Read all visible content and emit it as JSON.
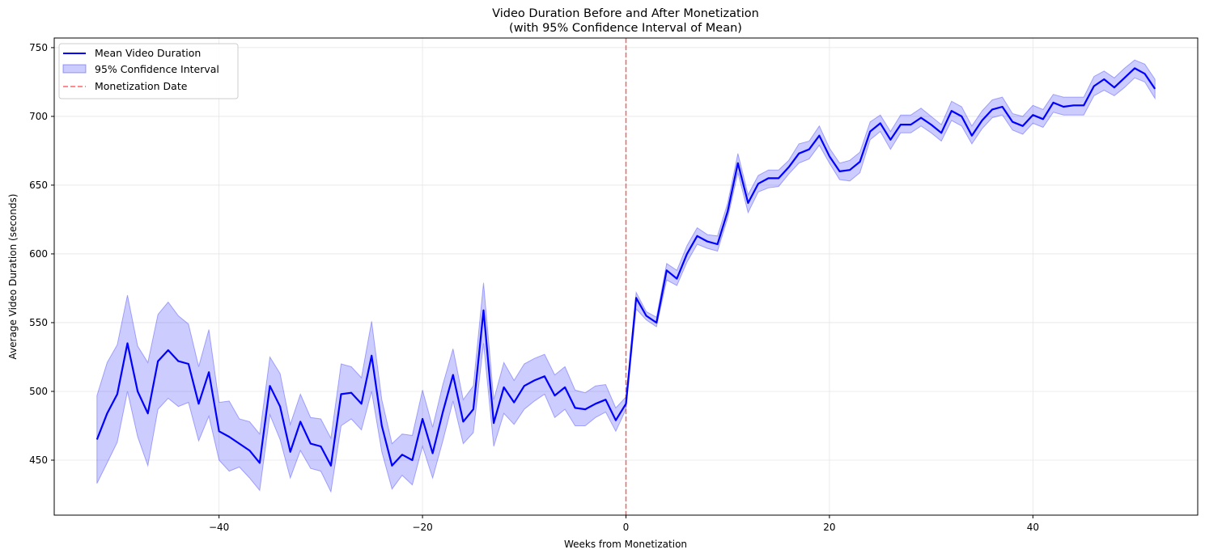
{
  "chart_data": {
    "type": "line",
    "title": "Video Duration Before and After Monetization",
    "subtitle": "(with 95% Confidence Interval of Mean)",
    "xlabel": "Weeks from Monetization",
    "ylabel": "Average Video Duration (seconds)",
    "xlim": [
      -56.2,
      56.2
    ],
    "ylim": [
      410,
      757
    ],
    "xticks": [
      -40,
      -20,
      0,
      20,
      40
    ],
    "xtick_labels": [
      "−40",
      "−20",
      "0",
      "20",
      "40"
    ],
    "yticks": [
      450,
      500,
      550,
      600,
      650,
      700,
      750
    ],
    "ytick_labels": [
      "450",
      "500",
      "550",
      "600",
      "650",
      "700",
      "750"
    ],
    "grid": true,
    "legend_position": "top-left",
    "colors": {
      "line": "#0000ff",
      "band": "#0000ff",
      "vline": "#ff0000"
    },
    "legend": [
      {
        "label": "Mean Video Duration",
        "kind": "line"
      },
      {
        "label": "95% Confidence Interval",
        "kind": "band"
      },
      {
        "label": "Monetization Date",
        "kind": "dashed"
      }
    ],
    "vline_x": 0,
    "x": [
      -52,
      -51,
      -50,
      -49,
      -48,
      -47,
      -46,
      -45,
      -44,
      -43,
      -42,
      -41,
      -40,
      -39,
      -38,
      -37,
      -36,
      -35,
      -34,
      -33,
      -32,
      -31,
      -30,
      -29,
      -28,
      -27,
      -26,
      -25,
      -24,
      -23,
      -22,
      -21,
      -20,
      -19,
      -18,
      -17,
      -16,
      -15,
      -14,
      -13,
      -12,
      -11,
      -10,
      -9,
      -8,
      -7,
      -6,
      -5,
      -4,
      -3,
      -2,
      -1,
      0,
      1,
      2,
      3,
      4,
      5,
      6,
      7,
      8,
      9,
      10,
      11,
      12,
      13,
      14,
      15,
      16,
      17,
      18,
      19,
      20,
      21,
      22,
      23,
      24,
      25,
      26,
      27,
      28,
      29,
      30,
      31,
      32,
      33,
      34,
      35,
      36,
      37,
      38,
      39,
      40,
      41,
      42,
      43,
      44,
      45,
      46,
      47,
      48,
      49,
      50,
      51,
      52
    ],
    "series": [
      {
        "name": "Mean Video Duration",
        "values": [
          465,
          484,
          498,
          535,
          500,
          484,
          522,
          530,
          522,
          520,
          491,
          514,
          471,
          467,
          462,
          457,
          448,
          504,
          489,
          456,
          478,
          462,
          460,
          446,
          498,
          499,
          491,
          526,
          475,
          446,
          454,
          450,
          480,
          455,
          485,
          512,
          478,
          487,
          559,
          477,
          503,
          492,
          504,
          508,
          511,
          497,
          503,
          488,
          487,
          491,
          494,
          479,
          491,
          568,
          555,
          550,
          588,
          582,
          600,
          613,
          609,
          607,
          631,
          666,
          637,
          651,
          655,
          655,
          663,
          673,
          676,
          686,
          671,
          660,
          661,
          667,
          689,
          695,
          683,
          694,
          694,
          699,
          694,
          688,
          704,
          700,
          686,
          697,
          705,
          707,
          696,
          693,
          701,
          698,
          710,
          707,
          708,
          708,
          722,
          727,
          721,
          728,
          735,
          731,
          720
        ]
      }
    ],
    "ci_lower": [
      433,
      448,
      463,
      500,
      467,
      446,
      487,
      495,
      489,
      492,
      464,
      482,
      450,
      442,
      445,
      437,
      428,
      483,
      465,
      437,
      457,
      444,
      442,
      427,
      475,
      480,
      472,
      500,
      456,
      429,
      439,
      432,
      460,
      437,
      464,
      493,
      462,
      470,
      535,
      460,
      484,
      476,
      487,
      493,
      498,
      481,
      487,
      475,
      475,
      481,
      485,
      471,
      487,
      560,
      552,
      547,
      581,
      577,
      594,
      607,
      604,
      602,
      626,
      659,
      630,
      645,
      648,
      649,
      658,
      666,
      669,
      679,
      666,
      654,
      653,
      659,
      683,
      689,
      676,
      688,
      688,
      693,
      688,
      682,
      697,
      693,
      680,
      691,
      699,
      701,
      690,
      687,
      695,
      692,
      703,
      701,
      701,
      701,
      715,
      719,
      715,
      721,
      728,
      725,
      713
    ],
    "ci_upper": [
      497,
      521,
      534,
      570,
      533,
      521,
      556,
      565,
      555,
      549,
      518,
      545,
      492,
      493,
      480,
      478,
      469,
      525,
      513,
      476,
      498,
      481,
      480,
      466,
      520,
      518,
      510,
      551,
      494,
      462,
      469,
      468,
      501,
      474,
      505,
      531,
      494,
      504,
      579,
      494,
      521,
      508,
      520,
      524,
      527,
      512,
      518,
      501,
      499,
      504,
      505,
      488,
      496,
      572,
      558,
      554,
      593,
      588,
      606,
      619,
      614,
      613,
      637,
      673,
      643,
      657,
      661,
      661,
      668,
      680,
      682,
      693,
      677,
      666,
      668,
      674,
      696,
      701,
      689,
      701,
      701,
      706,
      700,
      694,
      711,
      707,
      693,
      704,
      712,
      714,
      702,
      700,
      708,
      705,
      716,
      714,
      714,
      714,
      729,
      733,
      728,
      735,
      741,
      738,
      727
    ]
  }
}
